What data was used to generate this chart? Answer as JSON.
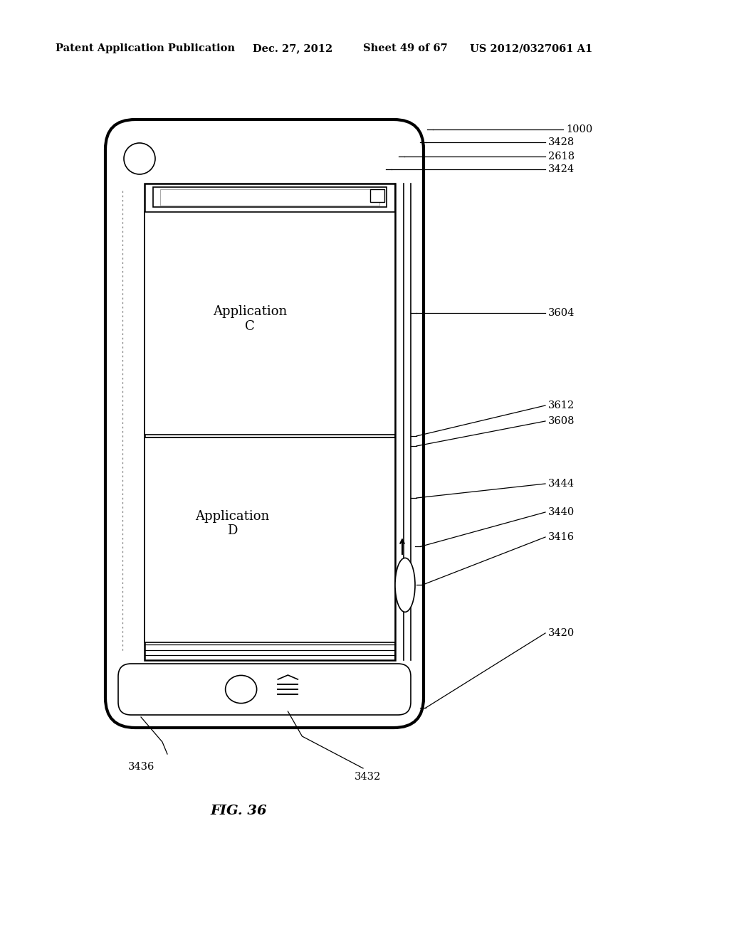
{
  "bg_color": "#ffffff",
  "header_text": "Patent Application Publication",
  "header_date": "Dec. 27, 2012",
  "header_sheet": "Sheet 49 of 67",
  "header_patent": "US 2012/0327061 A1",
  "fig_label": "FIG. 36",
  "app_c_label": "Application\nC",
  "app_d_label": "Application\nD"
}
